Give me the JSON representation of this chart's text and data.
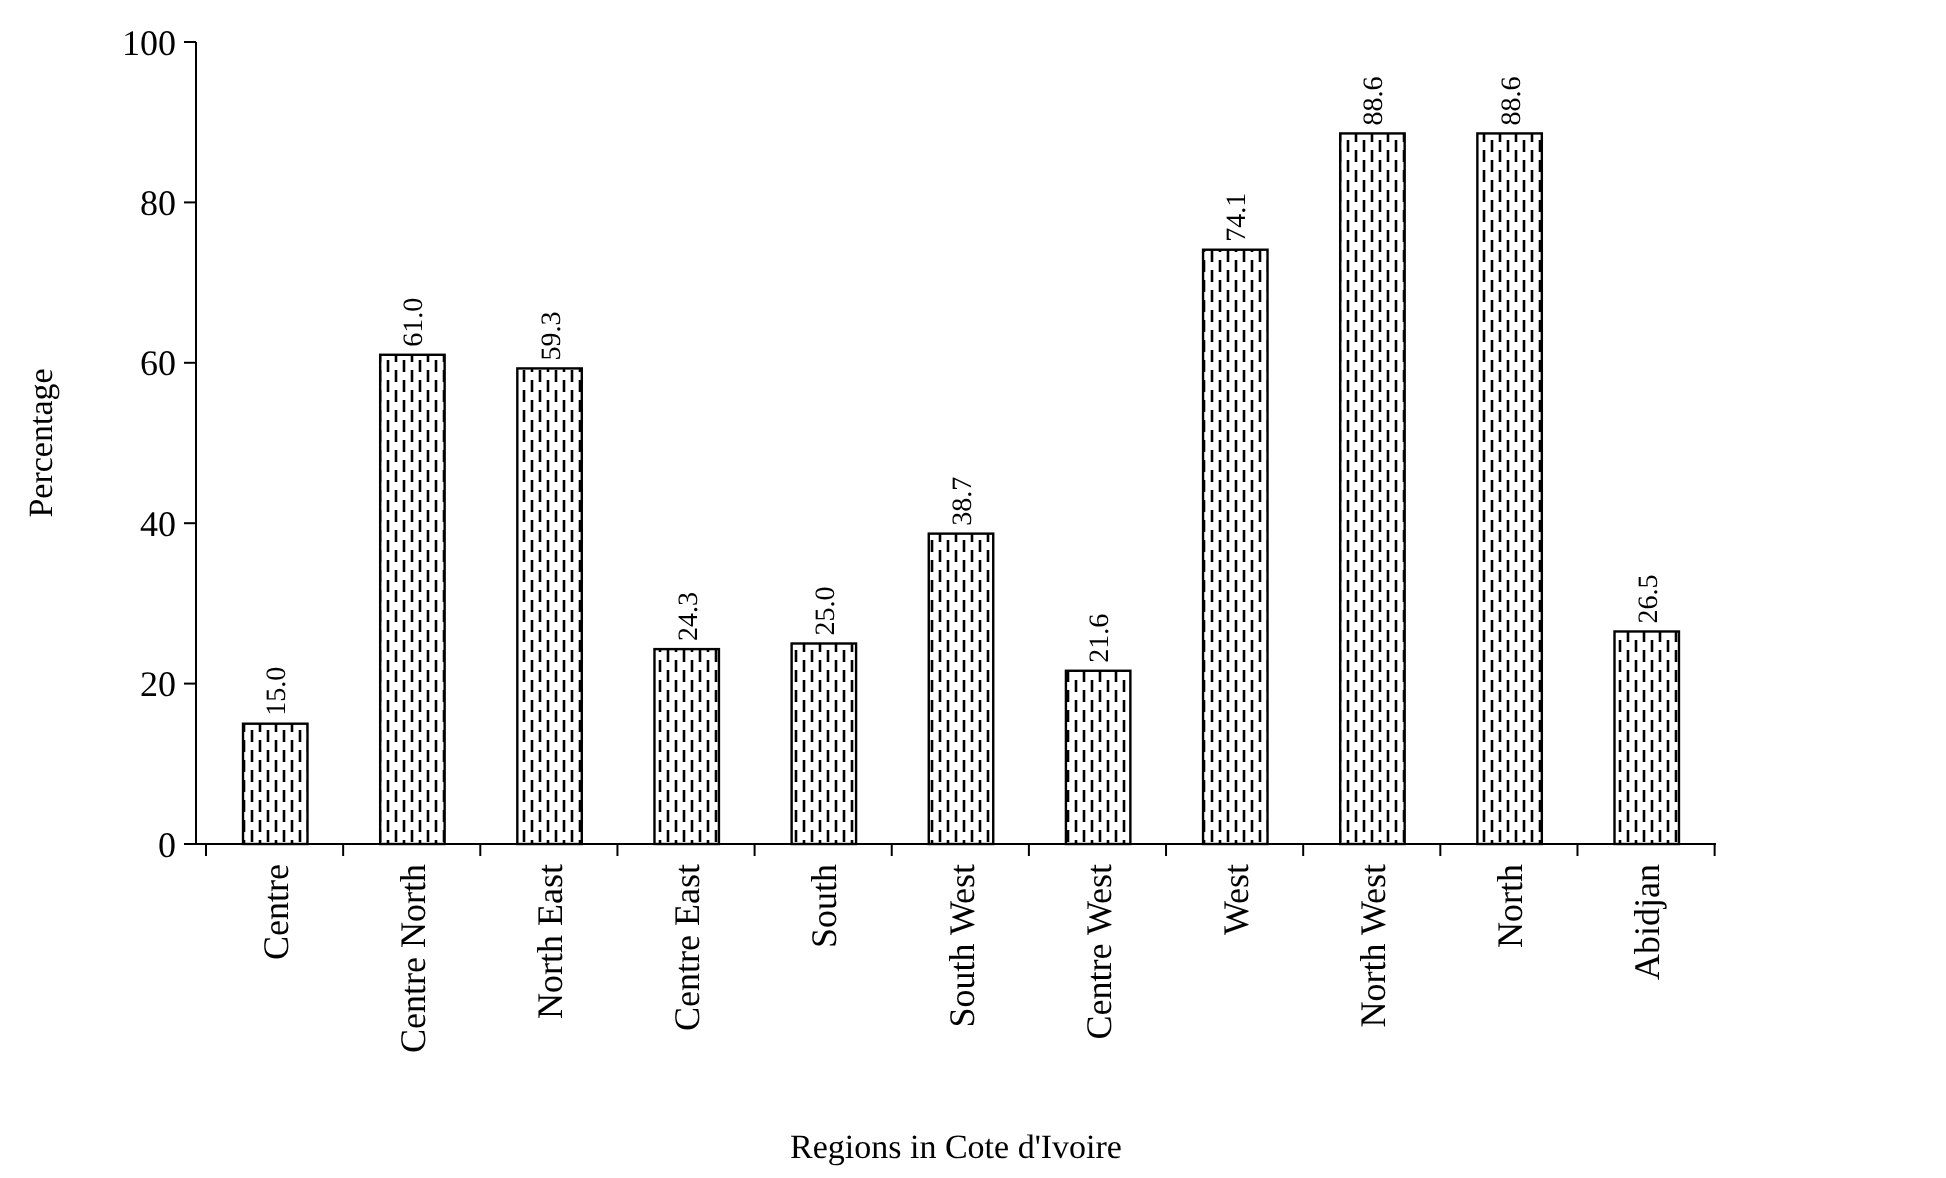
{
  "chart_data": {
    "type": "bar",
    "xlabel": "Regions in Cote d'Ivoire",
    "ylabel": "Percentage",
    "categories": [
      "Centre",
      "Centre North",
      "North East",
      "Centre East",
      "South",
      "South West",
      "Centre West",
      "West",
      "North West",
      "North",
      "Abidjan"
    ],
    "values": [
      15.0,
      61.0,
      59.3,
      24.3,
      25.0,
      38.7,
      21.6,
      74.1,
      88.6,
      88.6,
      26.5
    ],
    "value_labels": [
      "15.0",
      "61.0",
      "59.3",
      "24.3",
      "25.0",
      "38.7",
      "21.6",
      "74.1",
      "88.6",
      "88.6",
      "26.5"
    ],
    "color": "#000000",
    "ylim": [
      0,
      100
    ],
    "yticks": [
      0,
      20,
      40,
      60,
      80,
      100
    ],
    "grid": false
  }
}
